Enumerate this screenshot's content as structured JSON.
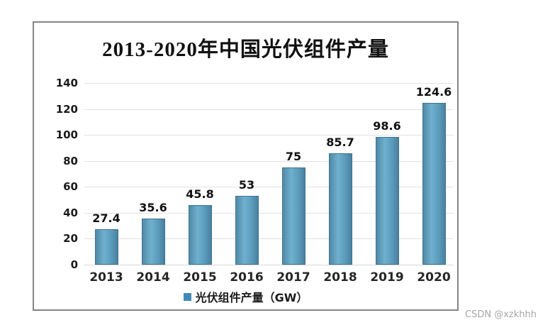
{
  "watermark": "CSDN @xzkhhh",
  "chart_data": {
    "type": "bar",
    "title": "2013-2020年中国光伏组件产量",
    "categories": [
      "2013",
      "2014",
      "2015",
      "2016",
      "2017",
      "2018",
      "2019",
      "2020"
    ],
    "values": [
      27.4,
      35.6,
      45.8,
      53,
      75,
      85.7,
      98.6,
      124.6
    ],
    "value_labels": [
      "27.4",
      "35.6",
      "45.8",
      "53",
      "75",
      "85.7",
      "98.6",
      "124.6"
    ],
    "legend": "光伏组件产量（GW）",
    "legend_position": "bottom",
    "xlabel": "",
    "ylabel": "",
    "ylim": [
      0,
      140
    ],
    "yticks": [
      0,
      20,
      40,
      60,
      80,
      100,
      120,
      140
    ],
    "grid": true,
    "colors": {
      "bar_fill": "#5d9ec0",
      "bar_edge": "#3f7390",
      "legend_swatch": "#3e8ab8",
      "gridline": "#e1e1e1",
      "frame_border": "#848484",
      "title_text": "#111111",
      "watermark_text": "#a6a6a9"
    }
  }
}
